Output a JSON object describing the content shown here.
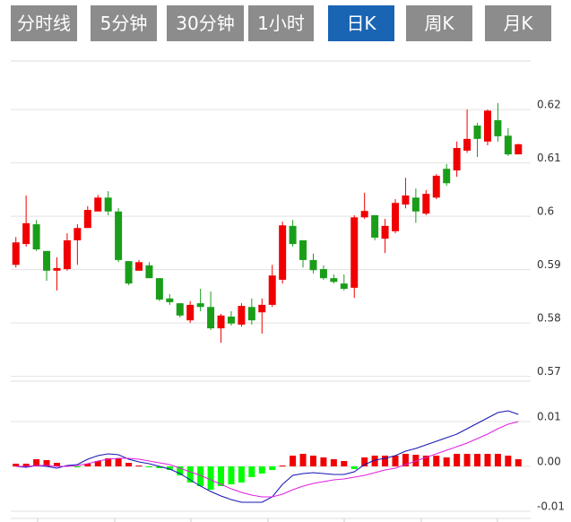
{
  "tabs": [
    "分时线",
    "5分钟",
    "30分钟",
    "1小时",
    "日K",
    "周K",
    "月K"
  ],
  "active_tab": 4,
  "chart_data": [
    {
      "type": "candlestick",
      "up_color": "#f00000",
      "down_color": "#1a9e1a",
      "open": [
        0.5909,
        0.5948,
        0.5985,
        0.5935,
        0.5898,
        0.5901,
        0.5955,
        0.5978,
        0.6009,
        0.6035,
        0.6009,
        0.5916,
        0.5898,
        0.5908,
        0.5884,
        0.5846,
        0.5837,
        0.5805,
        0.5837,
        0.583,
        0.579,
        0.5812,
        0.5797,
        0.583,
        0.582,
        0.5834,
        0.5881,
        0.5982,
        0.5955,
        0.5918,
        0.5901,
        0.5884,
        0.5874,
        0.5866,
        0.5998,
        0.6002,
        0.5958,
        0.5972,
        0.6022,
        0.6035,
        0.6005,
        0.6035,
        0.6089,
        0.6086,
        0.6123,
        0.617,
        0.614,
        0.618,
        0.6151,
        0.6116
      ],
      "high": [
        0.5961,
        0.6039,
        0.5993,
        0.5935,
        0.5923,
        0.5968,
        0.5985,
        0.6019,
        0.604,
        0.6047,
        0.6015,
        0.5916,
        0.5918,
        0.5914,
        0.5884,
        0.5854,
        0.5837,
        0.5841,
        0.5864,
        0.5859,
        0.5817,
        0.5822,
        0.5837,
        0.5846,
        0.5846,
        0.5909,
        0.599,
        0.5993,
        0.5955,
        0.593,
        0.5908,
        0.5891,
        0.5891,
        0.6002,
        0.6044,
        0.6002,
        0.5995,
        0.6032,
        0.6072,
        0.6052,
        0.6049,
        0.6079,
        0.6098,
        0.614,
        0.62,
        0.6175,
        0.62,
        0.6212,
        0.6165,
        0.6136
      ],
      "low": [
        0.5904,
        0.5943,
        0.5935,
        0.5879,
        0.5861,
        0.5898,
        0.5909,
        0.5978,
        0.6009,
        0.6002,
        0.5914,
        0.5871,
        0.5898,
        0.5884,
        0.5841,
        0.5834,
        0.581,
        0.58,
        0.5822,
        0.5787,
        0.5763,
        0.5795,
        0.5793,
        0.5797,
        0.578,
        0.583,
        0.5874,
        0.5943,
        0.5904,
        0.5893,
        0.5881,
        0.5874,
        0.5861,
        0.5847,
        0.5995,
        0.5955,
        0.5931,
        0.5968,
        0.6015,
        0.5988,
        0.6002,
        0.6032,
        0.6057,
        0.6074,
        0.6119,
        0.6111,
        0.6133,
        0.614,
        0.6113,
        0.6116
      ],
      "close": [
        0.5951,
        0.5987,
        0.5938,
        0.5898,
        0.5903,
        0.5955,
        0.5978,
        0.6012,
        0.6035,
        0.6009,
        0.5918,
        0.5874,
        0.5914,
        0.5884,
        0.5844,
        0.5839,
        0.5814,
        0.5834,
        0.583,
        0.579,
        0.5814,
        0.5799,
        0.5832,
        0.5805,
        0.5834,
        0.5889,
        0.5983,
        0.5948,
        0.5918,
        0.5899,
        0.5884,
        0.5877,
        0.5864,
        0.5998,
        0.601,
        0.596,
        0.5982,
        0.6025,
        0.6039,
        0.6009,
        0.6042,
        0.6076,
        0.6062,
        0.6128,
        0.6145,
        0.6145,
        0.6198,
        0.615,
        0.6116,
        0.6135
      ],
      "ylim": [
        0.5696,
        0.6291
      ],
      "yticks": [
        0.57,
        0.58,
        0.59,
        0.6,
        0.61,
        0.62
      ],
      "grid": true
    },
    {
      "type": "macd",
      "histogram": {
        "up_color": "#f00000",
        "down_color": "#00ff00",
        "values": [
          0.0006,
          0.0006,
          0.0016,
          0.0014,
          0.0008,
          0.0002,
          -0.0002,
          0.0006,
          0.0012,
          0.0018,
          0.0018,
          0.0008,
          0.0002,
          -0.0002,
          -0.0004,
          -0.0008,
          -0.002,
          -0.0036,
          -0.0044,
          -0.0052,
          -0.0044,
          -0.004,
          -0.0036,
          -0.0024,
          -0.0016,
          -0.0008,
          0.0002,
          0.0024,
          0.0028,
          0.0024,
          0.002,
          0.0016,
          0.0012,
          -0.0006,
          0.002,
          0.0024,
          0.0024,
          0.0024,
          0.0028,
          0.0026,
          0.0024,
          0.0024,
          0.002,
          0.0028,
          0.0028,
          0.0028,
          0.0028,
          0.0028,
          0.0024,
          0.0016
        ]
      },
      "lines": [
        {
          "color": "#1414b4",
          "values": [
            0,
            -0.0002,
            0.0002,
            0,
            -0.0004,
            0.0002,
            0.0004,
            0.0016,
            0.0024,
            0.0028,
            0.0026,
            0.0016,
            0.001,
            0.0006,
            0,
            -0.0006,
            -0.0016,
            -0.003,
            -0.0044,
            -0.0056,
            -0.0066,
            -0.0074,
            -0.008,
            -0.008,
            -0.008,
            -0.0068,
            -0.004,
            -0.002,
            -0.0016,
            -0.0014,
            -0.0016,
            -0.0018,
            -0.0018,
            -0.0012,
            0.0004,
            0.0014,
            0.0018,
            0.0024,
            0.0034,
            0.004,
            0.0048,
            0.0056,
            0.0064,
            0.0072,
            0.0084,
            0.0096,
            0.0108,
            0.012,
            0.0124,
            0.0116
          ]
        },
        {
          "color": "#e020e0",
          "values": [
            0,
            0,
            0.0002,
            0.0002,
            0,
            0,
            0.0002,
            0.0006,
            0.0012,
            0.0016,
            0.0018,
            0.0018,
            0.0016,
            0.0012,
            0.0008,
            0.0004,
            -0.0004,
            -0.0012,
            -0.002,
            -0.003,
            -0.004,
            -0.005,
            -0.0058,
            -0.0064,
            -0.0068,
            -0.0068,
            -0.0062,
            -0.0052,
            -0.0044,
            -0.0038,
            -0.0034,
            -0.003,
            -0.0028,
            -0.0024,
            -0.002,
            -0.0014,
            -0.0008,
            -0.0004,
            0.0004,
            0.0012,
            0.002,
            0.0028,
            0.0036,
            0.0044,
            0.0052,
            0.0062,
            0.0072,
            0.0084,
            0.0094,
            0.01
          ]
        }
      ],
      "ylim": [
        -0.0116,
        0.019
      ],
      "yticks": [
        -0.01,
        {
          "value": 0,
          "label": "0.00"
        },
        0.01
      ],
      "grid": true
    }
  ]
}
